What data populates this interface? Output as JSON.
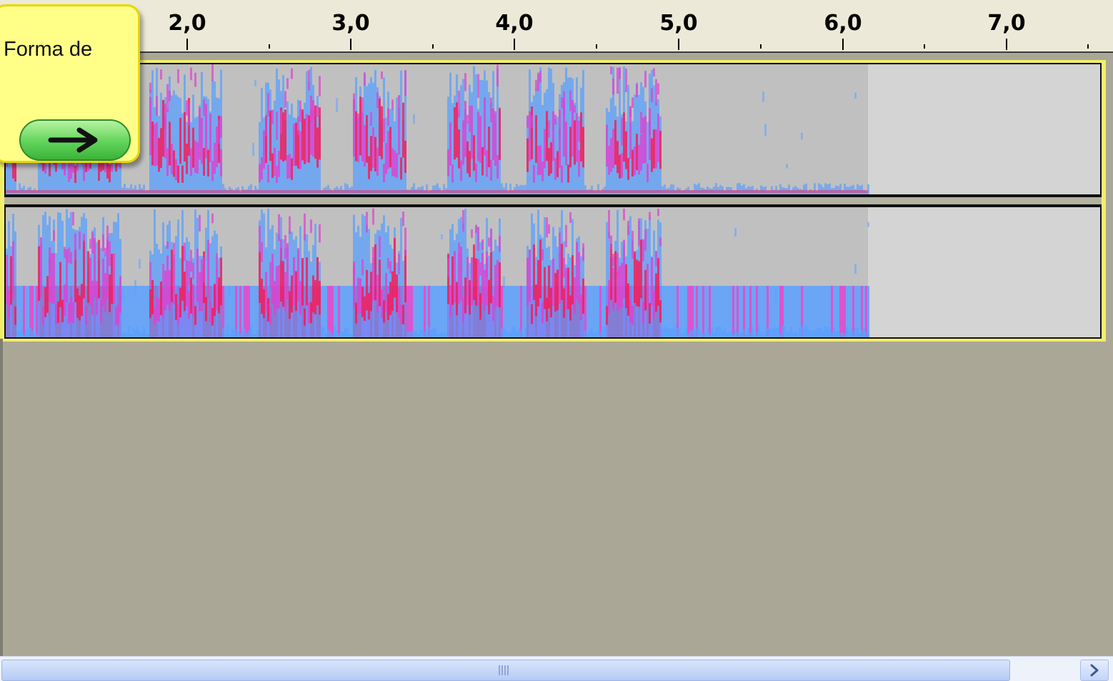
{
  "ruler": {
    "ticks": [
      "2,0",
      "3,0",
      "4,0",
      "5,0",
      "6,0",
      "7,0"
    ]
  },
  "tooltip": {
    "text": "Forma de",
    "next_icon": "arrow-right-icon"
  },
  "track": {
    "channels": 2,
    "view": "spectrogram",
    "colors": {
      "loud": "#ff1450",
      "mid": "#e040d0",
      "quiet": "#5aa0ff",
      "silence": "#c0c0c0",
      "beyond_end": "#d4d4d4",
      "selection_border": "#f2ee60"
    }
  },
  "scrollbar": {
    "right_icon": "chevron-right-icon"
  }
}
